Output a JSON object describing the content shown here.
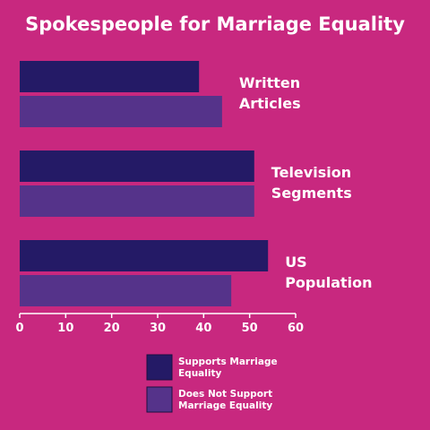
{
  "chart_data": {
    "type": "bar",
    "orientation": "horizontal",
    "title": "Spokespeople for Marriage Equality",
    "categories": [
      [
        "Written",
        "Articles"
      ],
      [
        "Television",
        "Segments"
      ],
      [
        "US",
        "Population"
      ]
    ],
    "series": [
      {
        "name": "Supports Marriage Equality",
        "name_lines": [
          "Supports Marriage",
          "Equality"
        ],
        "color": "#241a66",
        "values": [
          39,
          51,
          54
        ]
      },
      {
        "name": "Does Not Support Marriage Equality",
        "name_lines": [
          "Does Not Support",
          "Marriage Equality"
        ],
        "color": "#55338a",
        "values": [
          44,
          51,
          46
        ]
      }
    ],
    "xticks": [
      "0",
      "10",
      "20",
      "30",
      "40",
      "50",
      "60"
    ],
    "xlim": [
      0,
      60
    ],
    "xlabel": "",
    "ylabel": "",
    "grid": false,
    "legend_position": "bottom"
  },
  "colors": {
    "background": "#c8287f",
    "text": "#ffffff",
    "axis": "#ffffff"
  }
}
